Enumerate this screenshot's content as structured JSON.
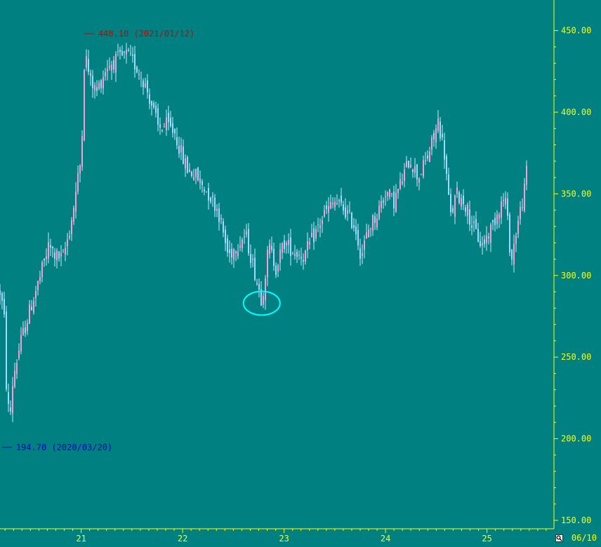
{
  "chart_data": {
    "type": "candlestick",
    "title": "",
    "xlabel": "",
    "ylabel": "",
    "ylim": [
      145,
      460
    ],
    "xlim": [
      2020.2,
      2025.45
    ],
    "y_ticks": [
      "450.00",
      "400.00",
      "350.00",
      "300.00",
      "250.00",
      "200.00",
      "150.00"
    ],
    "x_ticks": [
      "21",
      "22",
      "23",
      "24",
      "25"
    ],
    "price_path": [
      {
        "t": 2020.2,
        "v": 290
      },
      {
        "t": 2020.24,
        "v": 276
      },
      {
        "t": 2020.26,
        "v": 235
      },
      {
        "t": 2020.295,
        "v": 210
      },
      {
        "t": 2020.33,
        "v": 238
      },
      {
        "t": 2020.4,
        "v": 258
      },
      {
        "t": 2020.5,
        "v": 280
      },
      {
        "t": 2020.6,
        "v": 300
      },
      {
        "t": 2020.68,
        "v": 318
      },
      {
        "t": 2020.75,
        "v": 312
      },
      {
        "t": 2020.82,
        "v": 310
      },
      {
        "t": 2020.9,
        "v": 332
      },
      {
        "t": 2020.97,
        "v": 360
      },
      {
        "t": 2021.0,
        "v": 372
      },
      {
        "t": 2021.035,
        "v": 438
      },
      {
        "t": 2021.08,
        "v": 422
      },
      {
        "t": 2021.15,
        "v": 412
      },
      {
        "t": 2021.25,
        "v": 428
      },
      {
        "t": 2021.35,
        "v": 432
      },
      {
        "t": 2021.45,
        "v": 435
      },
      {
        "t": 2021.52,
        "v": 430
      },
      {
        "t": 2021.6,
        "v": 422
      },
      {
        "t": 2021.68,
        "v": 408
      },
      {
        "t": 2021.76,
        "v": 390
      },
      {
        "t": 2021.84,
        "v": 392
      },
      {
        "t": 2021.92,
        "v": 388
      },
      {
        "t": 2022.0,
        "v": 372
      },
      {
        "t": 2022.05,
        "v": 365
      },
      {
        "t": 2022.12,
        "v": 362
      },
      {
        "t": 2022.2,
        "v": 355
      },
      {
        "t": 2022.28,
        "v": 348
      },
      {
        "t": 2022.35,
        "v": 340
      },
      {
        "t": 2022.45,
        "v": 312
      },
      {
        "t": 2022.55,
        "v": 320
      },
      {
        "t": 2022.62,
        "v": 325
      },
      {
        "t": 2022.7,
        "v": 305
      },
      {
        "t": 2022.78,
        "v": 285
      },
      {
        "t": 2022.85,
        "v": 318
      },
      {
        "t": 2022.92,
        "v": 305
      },
      {
        "t": 2023.0,
        "v": 320
      },
      {
        "t": 2023.1,
        "v": 315
      },
      {
        "t": 2023.2,
        "v": 312
      },
      {
        "t": 2023.3,
        "v": 325
      },
      {
        "t": 2023.4,
        "v": 338
      },
      {
        "t": 2023.5,
        "v": 345
      },
      {
        "t": 2023.6,
        "v": 340
      },
      {
        "t": 2023.7,
        "v": 330
      },
      {
        "t": 2023.76,
        "v": 312
      },
      {
        "t": 2023.84,
        "v": 330
      },
      {
        "t": 2023.92,
        "v": 338
      },
      {
        "t": 2024.0,
        "v": 352
      },
      {
        "t": 2024.08,
        "v": 345
      },
      {
        "t": 2024.16,
        "v": 358
      },
      {
        "t": 2024.24,
        "v": 372
      },
      {
        "t": 2024.32,
        "v": 360
      },
      {
        "t": 2024.4,
        "v": 370
      },
      {
        "t": 2024.48,
        "v": 385
      },
      {
        "t": 2024.52,
        "v": 395
      },
      {
        "t": 2024.58,
        "v": 375
      },
      {
        "t": 2024.64,
        "v": 335
      },
      {
        "t": 2024.7,
        "v": 350
      },
      {
        "t": 2024.78,
        "v": 345
      },
      {
        "t": 2024.86,
        "v": 330
      },
      {
        "t": 2024.95,
        "v": 318
      },
      {
        "t": 2025.05,
        "v": 330
      },
      {
        "t": 2025.12,
        "v": 342
      },
      {
        "t": 2025.18,
        "v": 348
      },
      {
        "t": 2025.24,
        "v": 308
      },
      {
        "t": 2025.28,
        "v": 325
      },
      {
        "t": 2025.33,
        "v": 340
      },
      {
        "t": 2025.38,
        "v": 355
      },
      {
        "t": 2025.41,
        "v": 382
      }
    ],
    "annotations": {
      "high": {
        "label": "448.10 (2021/01/12)",
        "t": 2021.03,
        "v": 448.1
      },
      "low": {
        "label": "194.70 (2020/03/20)",
        "t": 2020.22,
        "v": 194.7
      }
    },
    "highlight_marker": {
      "shape": "ellipse",
      "t": 2022.78,
      "v": 283
    }
  },
  "colors": {
    "background": "#008080",
    "axis_text": "#ffff00",
    "axis_line": "#ffff00",
    "candle_up": "#ff9ad8",
    "candle_down": "#a0d8ff",
    "wick": "#c8eaff",
    "high_label": "#cc0000",
    "low_label": "#0000cc",
    "highlight": "#00ffff"
  },
  "footer": {
    "date_label": "06/10",
    "zoom_icon": "magnifier-icon"
  }
}
